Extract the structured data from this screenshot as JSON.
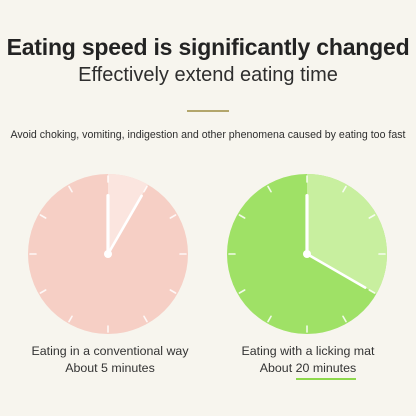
{
  "header": {
    "title": "Eating speed is significantly changed",
    "subtitle": "Effectively extend eating time"
  },
  "description": "Avoid choking, vomiting, indigestion and other phenomena caused by eating too fast",
  "clocks": [
    {
      "caption_line1": "Eating in a conventional way",
      "caption_line2": "About 5 minutes",
      "face_color": "#f6cfc5",
      "sector_color": "#fbe5df",
      "elapsed_minutes": 5
    },
    {
      "caption_line1": "Eating with a licking mat",
      "caption_prefix": "About ",
      "caption_highlight": "20 minutes",
      "face_color": "#9fe166",
      "sector_color": "#c8ef9f",
      "highlight_color": "#8ed84c",
      "elapsed_minutes": 20
    }
  ],
  "colors": {
    "background": "#f7f5ee",
    "divider": "#b3a66c"
  }
}
